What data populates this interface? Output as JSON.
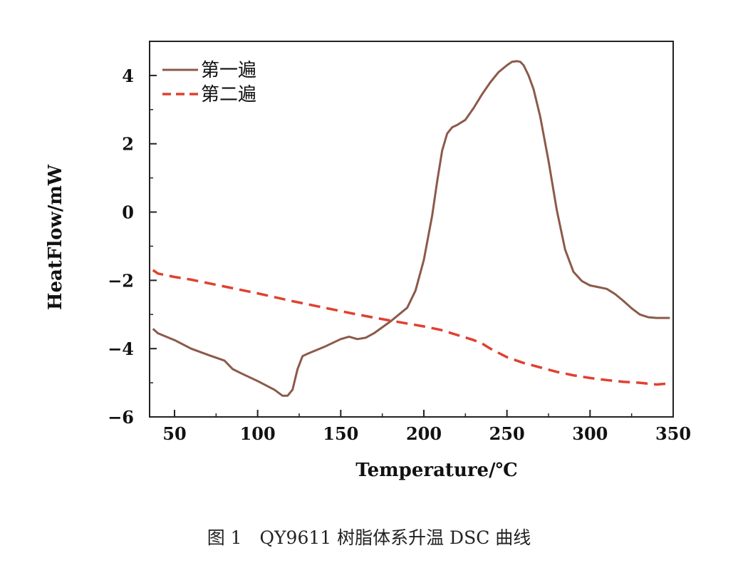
{
  "caption": "图 1　QY9611 树脂体系升温 DSC 曲线",
  "chart_data": {
    "type": "line",
    "xlabel": "Temperature/℃",
    "ylabel": "HeatFlow/mW",
    "xlim": [
      35,
      350
    ],
    "ylim": [
      -6,
      5
    ],
    "xticks": [
      50,
      100,
      150,
      200,
      250,
      300,
      350
    ],
    "yticks": [
      -6,
      -4,
      -2,
      0,
      2,
      4
    ],
    "ytick_labels": [
      "−6",
      "−4",
      "−2",
      "0",
      "2",
      "4"
    ],
    "legend_position": "top-left",
    "series": [
      {
        "name": "第一遍",
        "color": "#8b5a4a",
        "style": "solid",
        "x": [
          37,
          40,
          50,
          60,
          70,
          80,
          82,
          85,
          90,
          100,
          110,
          115,
          118,
          121,
          124,
          127,
          130,
          140,
          150,
          155,
          160,
          165,
          170,
          180,
          185,
          190,
          195,
          200,
          205,
          208,
          211,
          214,
          217,
          220,
          225,
          230,
          235,
          240,
          245,
          250,
          253,
          256,
          258,
          260,
          263,
          266,
          270,
          275,
          280,
          285,
          290,
          295,
          300,
          305,
          310,
          315,
          320,
          325,
          330,
          335,
          340,
          345,
          348
        ],
        "y": [
          -3.42,
          -3.55,
          -3.75,
          -4.0,
          -4.18,
          -4.35,
          -4.45,
          -4.6,
          -4.72,
          -4.95,
          -5.2,
          -5.38,
          -5.38,
          -5.2,
          -4.6,
          -4.22,
          -4.15,
          -3.95,
          -3.72,
          -3.65,
          -3.72,
          -3.68,
          -3.55,
          -3.2,
          -3.0,
          -2.8,
          -2.3,
          -1.4,
          -0.1,
          0.9,
          1.8,
          2.3,
          2.48,
          2.55,
          2.7,
          3.05,
          3.45,
          3.8,
          4.1,
          4.3,
          4.4,
          4.42,
          4.4,
          4.3,
          4.0,
          3.6,
          2.8,
          1.5,
          0.05,
          -1.1,
          -1.75,
          -2.02,
          -2.15,
          -2.2,
          -2.25,
          -2.4,
          -2.6,
          -2.82,
          -3.0,
          -3.08,
          -3.1,
          -3.1,
          -3.1
        ]
      },
      {
        "name": "第二遍",
        "color": "#e04030",
        "style": "dashed",
        "x": [
          37,
          40,
          50,
          60,
          80,
          100,
          120,
          140,
          160,
          180,
          200,
          210,
          220,
          230,
          235,
          240,
          250,
          260,
          270,
          280,
          290,
          300,
          310,
          320,
          330,
          340,
          348
        ],
        "y": [
          -1.7,
          -1.8,
          -1.9,
          -1.98,
          -2.18,
          -2.38,
          -2.6,
          -2.8,
          -3.0,
          -3.18,
          -3.35,
          -3.45,
          -3.6,
          -3.75,
          -3.85,
          -4.0,
          -4.25,
          -4.42,
          -4.55,
          -4.68,
          -4.78,
          -4.86,
          -4.92,
          -4.97,
          -5.0,
          -5.05,
          -5.02
        ]
      }
    ]
  }
}
